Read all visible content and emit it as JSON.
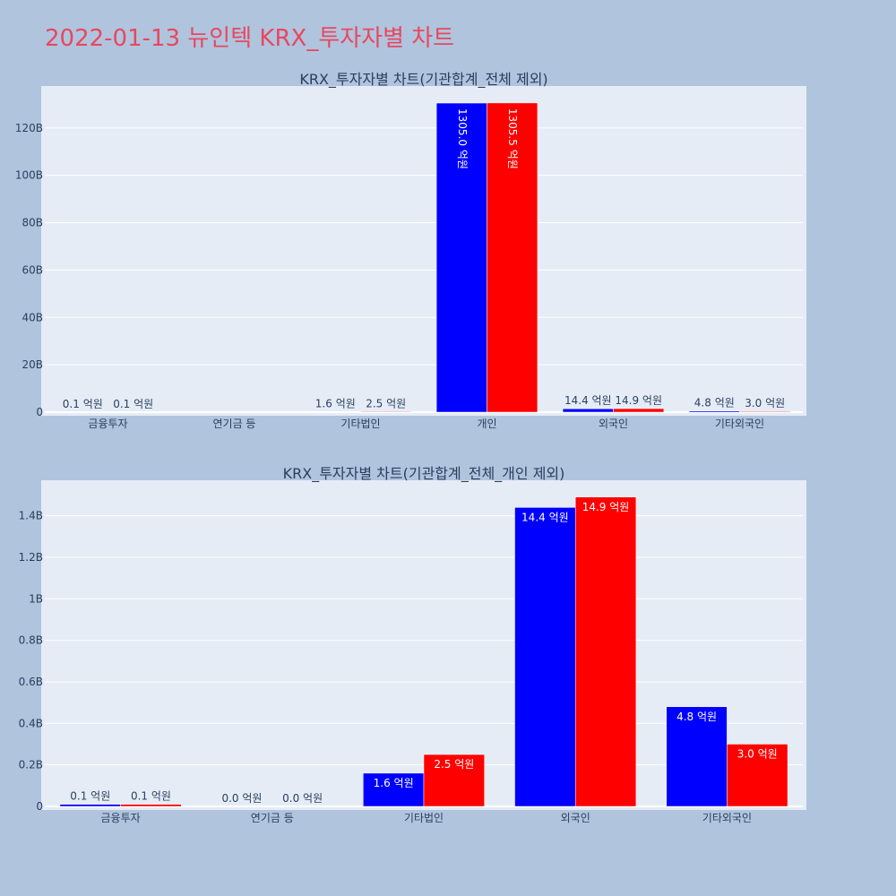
{
  "page_title": "2022-01-13 뉴인텍 KRX_투자자별 차트",
  "colors": {
    "background": "#B0C4DE",
    "plot_bg": "#E5ECF6",
    "title": "#E8485E",
    "series1": "#0000FF",
    "series2": "#FF0000"
  },
  "chart_data": [
    {
      "type": "bar",
      "title": "KRX_투자자별 차트(기관합계_전체 제외)",
      "categories": [
        "금융투자",
        "연기금 등",
        "기타법인",
        "개인",
        "외국인",
        "기타외국인"
      ],
      "series": [
        {
          "values": [
            10000000,
            0,
            160000000,
            130500000000,
            1440000000,
            480000000
          ],
          "labels": [
            "0.1 억원",
            "",
            "1.6 억원",
            "1305.0 억원",
            "14.4 억원",
            "4.8 억원"
          ]
        },
        {
          "values": [
            10000000,
            0,
            250000000,
            130550000000,
            1490000000,
            300000000
          ],
          "labels": [
            "0.1 억원",
            "",
            "2.5 억원",
            "1305.5 억원",
            "14.9 억원",
            "3.0 억원"
          ]
        }
      ],
      "yticks": [
        0,
        20000000000,
        40000000000,
        60000000000,
        80000000000,
        100000000000,
        120000000000
      ],
      "ytick_labels": [
        "0",
        "20B",
        "40B",
        "60B",
        "80B",
        "100B",
        "120B"
      ],
      "ylim": [
        0,
        137700000000
      ],
      "grid": true
    },
    {
      "type": "bar",
      "title": "KRX_투자자별 차트(기관합계_전체_개인 제외)",
      "categories": [
        "금융투자",
        "연기금 등",
        "기타법인",
        "외국인",
        "기타외국인"
      ],
      "series": [
        {
          "values": [
            10000000,
            0,
            160000000,
            1440000000,
            480000000
          ],
          "labels": [
            "0.1 억원",
            "0.0 억원",
            "1.6 억원",
            "14.4 억원",
            "4.8 억원"
          ]
        },
        {
          "values": [
            10000000,
            0,
            250000000,
            1490000000,
            300000000
          ],
          "labels": [
            "0.1 억원",
            "0.0 억원",
            "2.5 억원",
            "14.9 억원",
            "3.0 억원"
          ]
        }
      ],
      "yticks": [
        0,
        200000000,
        400000000,
        600000000,
        800000000,
        1000000000,
        1200000000,
        1400000000
      ],
      "ytick_labels": [
        "0",
        "0.2B",
        "0.4B",
        "0.6B",
        "0.8B",
        "1B",
        "1.2B",
        "1.4B"
      ],
      "ylim": [
        0,
        1571000000
      ],
      "grid": true
    }
  ]
}
